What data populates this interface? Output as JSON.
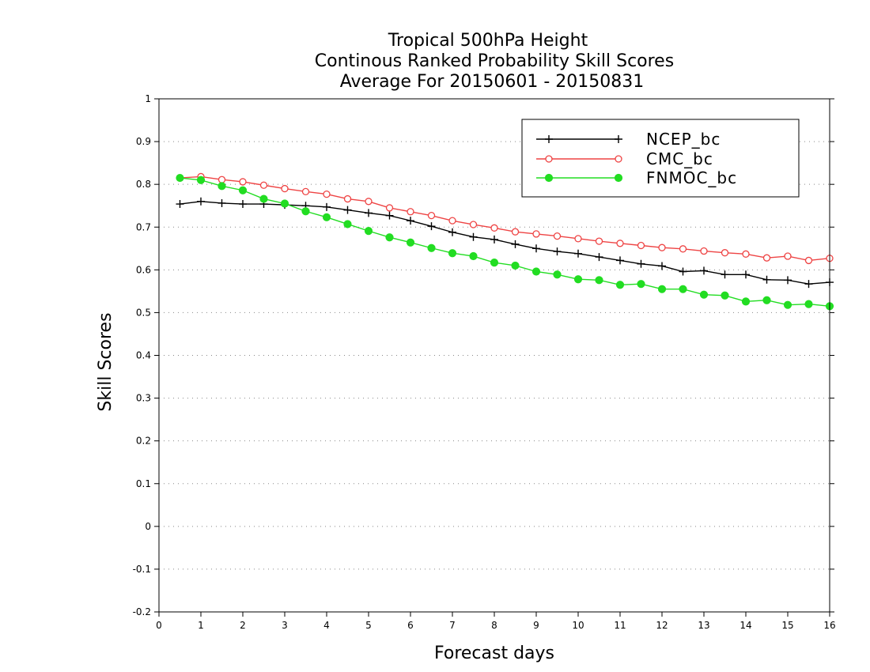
{
  "title": {
    "lines": [
      "Tropical 500hPa Height",
      "Continous Ranked Probability Skill Scores",
      "Average For 20150601 - 20150831"
    ]
  },
  "chart_data": {
    "type": "line",
    "title": "Tropical 500hPa Height / Continous Ranked Probability Skill Scores / Average For 20150601 - 20150831",
    "xlabel": "Forecast days",
    "ylabel": "Skill Scores",
    "xlim": [
      0,
      16
    ],
    "ylim": [
      -0.2,
      1
    ],
    "xticks": [
      0,
      1,
      2,
      3,
      4,
      5,
      6,
      7,
      8,
      9,
      10,
      11,
      12,
      13,
      14,
      15,
      16
    ],
    "yticks": [
      -0.2,
      -0.1,
      0,
      0.1,
      0.2,
      0.3,
      0.4,
      0.5,
      0.6,
      0.7,
      0.8,
      0.9,
      1
    ],
    "ytick_labels": [
      "-0.2",
      "-0.1",
      "0",
      "0.1",
      "0.2",
      "0.3",
      "0.4",
      "0.5",
      "0.6",
      "0.7",
      "0.8",
      "0.9",
      "1"
    ],
    "grid": "horizontal dotted",
    "legend_position": "top-right",
    "x": [
      0.5,
      1,
      1.5,
      2,
      2.5,
      3,
      3.5,
      4,
      4.5,
      5,
      5.5,
      6,
      6.5,
      7,
      7.5,
      8,
      8.5,
      9,
      9.5,
      10,
      10.5,
      11,
      11.5,
      12,
      12.5,
      13,
      13.5,
      14,
      14.5,
      15,
      15.5,
      16
    ],
    "series": [
      {
        "name": "NCEP_bc",
        "color": "#000000",
        "marker": "plus",
        "values": [
          0.754,
          0.76,
          0.756,
          0.754,
          0.754,
          0.752,
          0.75,
          0.747,
          0.74,
          0.733,
          0.727,
          0.715,
          0.702,
          0.688,
          0.677,
          0.671,
          0.66,
          0.65,
          0.643,
          0.638,
          0.63,
          0.622,
          0.614,
          0.609,
          0.596,
          0.598,
          0.589,
          0.589,
          0.577,
          0.576,
          0.567,
          0.571
        ]
      },
      {
        "name": "CMC_bc",
        "color": "#ee4444",
        "marker": "open-circle",
        "values": [
          0.815,
          0.818,
          0.811,
          0.806,
          0.798,
          0.79,
          0.783,
          0.777,
          0.766,
          0.76,
          0.745,
          0.736,
          0.727,
          0.715,
          0.706,
          0.698,
          0.689,
          0.684,
          0.679,
          0.673,
          0.667,
          0.662,
          0.657,
          0.652,
          0.649,
          0.644,
          0.64,
          0.637,
          0.628,
          0.632,
          0.622,
          0.627
        ]
      },
      {
        "name": "FNMOC_bc",
        "color": "#22dd22",
        "marker": "filled-circle",
        "values": [
          0.815,
          0.81,
          0.796,
          0.786,
          0.766,
          0.755,
          0.737,
          0.723,
          0.707,
          0.691,
          0.676,
          0.664,
          0.651,
          0.639,
          0.632,
          0.617,
          0.61,
          0.596,
          0.589,
          0.578,
          0.576,
          0.565,
          0.567,
          0.555,
          0.555,
          0.542,
          0.54,
          0.526,
          0.529,
          0.518,
          0.52,
          0.515
        ]
      }
    ]
  }
}
